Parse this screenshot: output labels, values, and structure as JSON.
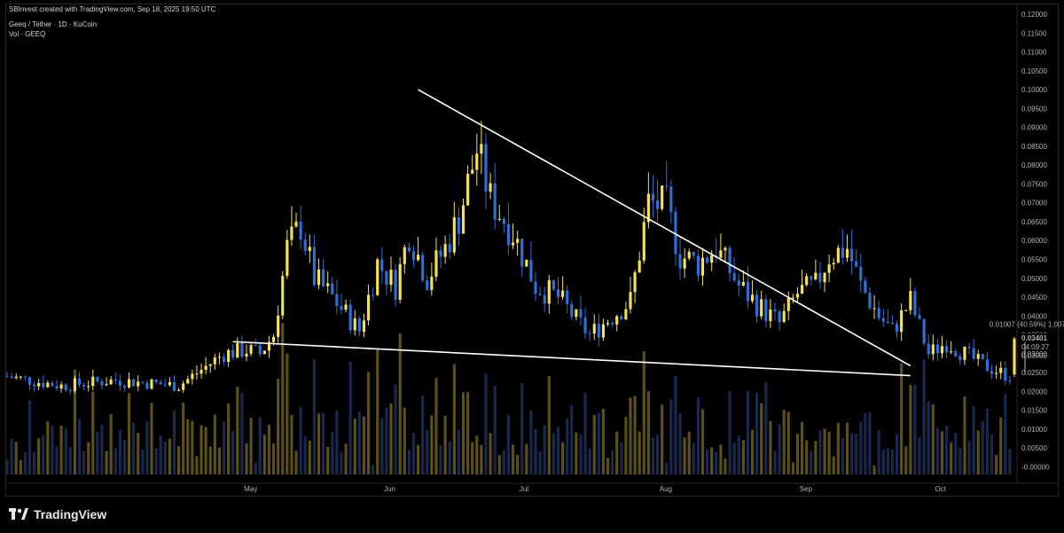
{
  "header": {
    "created_by": "SBInvest created with TradingView.com, Sep 18, 2025 19:50 UTC",
    "symbol_line": "Geeq / Tether · 1D · KuCoin",
    "volume_line": "Vol · GEEQ"
  },
  "watermark": {
    "text": "TradingView",
    "icon": "tradingview-logo-icon"
  },
  "colors": {
    "up": "#f5e05a",
    "down": "#2f6fd6",
    "trendline": "#ffffff",
    "bg": "#000000",
    "up_vol": "#6b5e1e",
    "down_vol": "#1e2f5a"
  },
  "measure_label": "0.01007 (40.59%) 1,007",
  "price_tag": {
    "price": "0.03401",
    "countdown": "04:09:27",
    "prev": "0.03000"
  },
  "chart_data": {
    "type": "candlestick",
    "y_ticks": [
      "0.12000",
      "0.11500",
      "0.11000",
      "0.10500",
      "0.10000",
      "0.09500",
      "0.09000",
      "0.08500",
      "0.08000",
      "0.07500",
      "0.07000",
      "0.06500",
      "0.06000",
      "0.05500",
      "0.05000",
      "0.04500",
      "0.04000",
      "0.03500",
      "0.03000",
      "0.02500",
      "0.02000",
      "0.01500",
      "0.01000",
      "0.00500",
      "-0.00000"
    ],
    "y_tick_values": [
      0.12,
      0.115,
      0.11,
      0.105,
      0.1,
      0.095,
      0.09,
      0.085,
      0.08,
      0.075,
      0.07,
      0.065,
      0.06,
      0.055,
      0.05,
      0.045,
      0.04,
      0.035,
      0.03,
      0.025,
      0.02,
      0.015,
      0.01,
      0.005,
      0
    ],
    "x_ticks": [
      "May",
      "Jun",
      "Jul",
      "Aug",
      "Sep",
      "Oct"
    ],
    "x_tick_dates": [
      "2025-05-01",
      "2025-06-01",
      "2025-07-01",
      "2025-08-01",
      "2025-09-01",
      "2025-10-01"
    ],
    "x_range": [
      "2025-03-08",
      "2025-10-17"
    ],
    "y_range": [
      -0.002,
      0.12
    ],
    "trendlines": [
      {
        "name": "upper",
        "from": [
          "2025-06-07",
          0.1
        ],
        "to": [
          "2025-09-24",
          0.0268
        ]
      },
      {
        "name": "lower",
        "from": [
          "2025-04-27",
          0.0332
        ],
        "to": [
          "2025-09-24",
          0.0242
        ]
      }
    ],
    "anchors": [
      [
        "2025-03-08",
        0.024
      ],
      [
        "2025-03-20",
        0.0215
      ],
      [
        "2025-04-01",
        0.023
      ],
      [
        "2025-04-15",
        0.0215
      ],
      [
        "2025-04-25",
        0.03
      ],
      [
        "2025-04-30",
        0.031
      ],
      [
        "2025-05-03",
        0.03
      ],
      [
        "2025-05-06",
        0.035
      ],
      [
        "2025-05-09",
        0.058
      ],
      [
        "2025-05-12",
        0.064
      ],
      [
        "2025-05-15",
        0.05
      ],
      [
        "2025-05-19",
        0.045
      ],
      [
        "2025-05-25",
        0.036
      ],
      [
        "2025-05-29",
        0.054
      ],
      [
        "2025-06-02",
        0.048
      ],
      [
        "2025-06-05",
        0.062
      ],
      [
        "2025-06-09",
        0.05
      ],
      [
        "2025-06-13",
        0.058
      ],
      [
        "2025-06-16",
        0.066
      ],
      [
        "2025-06-20",
        0.084
      ],
      [
        "2025-06-23",
        0.071
      ],
      [
        "2025-06-28",
        0.062
      ],
      [
        "2025-07-03",
        0.048
      ],
      [
        "2025-07-08",
        0.045
      ],
      [
        "2025-07-12",
        0.039
      ],
      [
        "2025-07-15",
        0.035
      ],
      [
        "2025-07-20",
        0.04
      ],
      [
        "2025-07-24",
        0.044
      ],
      [
        "2025-07-28",
        0.07
      ],
      [
        "2025-08-01",
        0.069
      ],
      [
        "2025-08-04",
        0.056
      ],
      [
        "2025-08-08",
        0.054
      ],
      [
        "2025-08-12",
        0.058
      ],
      [
        "2025-08-17",
        0.048
      ],
      [
        "2025-08-22",
        0.042
      ],
      [
        "2025-08-26",
        0.038
      ],
      [
        "2025-08-30",
        0.046
      ],
      [
        "2025-09-03",
        0.048
      ],
      [
        "2025-09-06",
        0.056
      ],
      [
        "2025-09-10",
        0.058
      ],
      [
        "2025-09-13",
        0.048
      ],
      [
        "2025-09-17",
        0.04
      ],
      [
        "2025-09-20",
        0.036
      ],
      [
        "2025-09-24",
        0.044
      ],
      [
        "2025-09-28",
        0.03
      ],
      [
        "2025-10-02",
        0.033
      ],
      [
        "2025-10-06",
        0.03
      ],
      [
        "2025-10-10",
        0.027
      ],
      [
        "2025-10-14",
        0.025
      ],
      [
        "2025-10-16",
        0.024
      ]
    ],
    "last_candle": {
      "date": "2025-10-17",
      "open": 0.0245,
      "high": 0.0345,
      "low": 0.0238,
      "close": 0.034
    }
  }
}
